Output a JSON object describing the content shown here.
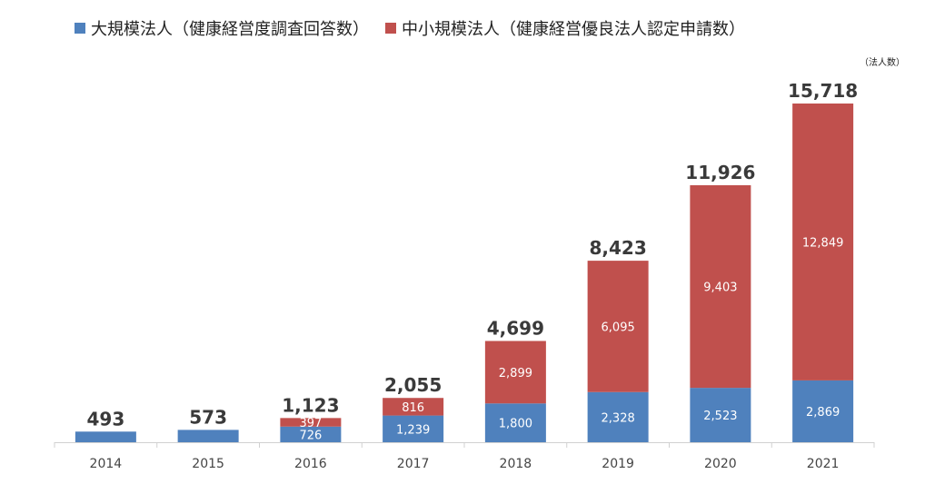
{
  "chart_data": {
    "type": "bar",
    "stacked": true,
    "categories": [
      "2014",
      "2015",
      "2016",
      "2017",
      "2018",
      "2019",
      "2020",
      "2021"
    ],
    "series": [
      {
        "name": "大規模法人（健康経営度調査回答数）",
        "color": "#4f81bd",
        "values": [
          493,
          573,
          726,
          1239,
          1800,
          2328,
          2523,
          2869
        ],
        "labels": [
          "",
          "",
          "726",
          "1,239",
          "1,800",
          "2,328",
          "2,523",
          "2,869"
        ]
      },
      {
        "name": "中小規模法人（健康経営優良法人認定申請数）",
        "color": "#c0504d",
        "values": [
          0,
          0,
          397,
          816,
          2899,
          6095,
          9403,
          12849
        ],
        "labels": [
          "",
          "",
          "397",
          "816",
          "2,899",
          "6,095",
          "9,403",
          "12,849"
        ]
      }
    ],
    "totals": [
      493,
      573,
      1123,
      2055,
      4699,
      8423,
      11926,
      15718
    ],
    "total_labels": [
      "493",
      "573",
      "1,123",
      "2,055",
      "4,699",
      "8,423",
      "11,926",
      "15,718"
    ],
    "unit_label": "（法人数）",
    "ylim": [
      0,
      15718
    ],
    "legend_position": "top",
    "grid": false
  }
}
